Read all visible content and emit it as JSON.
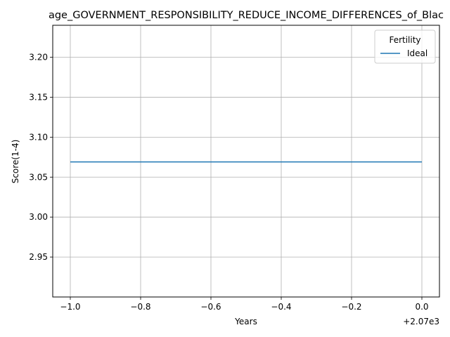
{
  "chart_data": {
    "type": "line",
    "title": "age_GOVERNMENT_RESPONSIBILITY_REDUCE_INCOME_DIFFERENCES_of_Blac",
    "xlabel": "Years",
    "ylabel": "Score(1-4)",
    "x_offset_label": "+2.07e3",
    "x_ticks": [
      "−1.0",
      "−0.8",
      "−0.6",
      "−0.4",
      "−0.2",
      "0.0"
    ],
    "y_ticks": [
      "2.95",
      "3.00",
      "3.05",
      "3.10",
      "3.15",
      "3.20"
    ],
    "xlim": [
      2068.95,
      2070.05
    ],
    "ylim": [
      2.9,
      3.24
    ],
    "grid": true,
    "legend": {
      "title": "Fertility",
      "position": "top-right"
    },
    "series": [
      {
        "name": "Ideal",
        "color": "#1f77b4",
        "x": [
          2069,
          2070
        ],
        "y": [
          3.069,
          3.069
        ]
      }
    ]
  }
}
